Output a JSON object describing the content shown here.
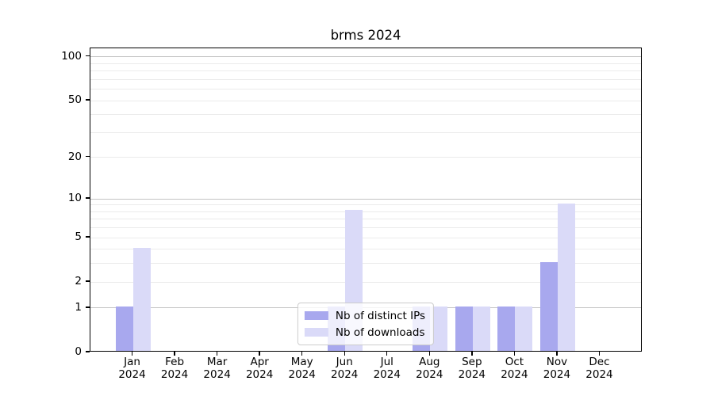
{
  "title": "brms 2024",
  "chart_data": {
    "type": "bar",
    "title": "brms 2024",
    "categories": [
      "Jan",
      "Feb",
      "Mar",
      "Apr",
      "May",
      "Jun",
      "Jul",
      "Aug",
      "Sep",
      "Oct",
      "Nov",
      "Dec"
    ],
    "category_year": "2024",
    "series": [
      {
        "name": "Nb of distinct IPs",
        "color": "#a8a8ee",
        "values": [
          1,
          0,
          0,
          0,
          0,
          1,
          0,
          1,
          1,
          1,
          3,
          0
        ]
      },
      {
        "name": "Nb of downloads",
        "color": "#dadaf8",
        "values": [
          4,
          0,
          0,
          0,
          0,
          8,
          0,
          1,
          1,
          1,
          9,
          0
        ]
      }
    ],
    "yscale": "log1p",
    "ylim": [
      0,
      114.4
    ],
    "ytick_labels": [
      100,
      50,
      20,
      10,
      5,
      2,
      1,
      0
    ],
    "major_gridlines": [
      1,
      10,
      100
    ],
    "minor_gridlines": [
      2,
      3,
      4,
      5,
      6,
      7,
      8,
      9,
      20,
      30,
      40,
      50,
      60,
      70,
      80,
      90
    ],
    "grid": true,
    "legend_position": "lower center",
    "colors": {
      "major_grid": "#c3c3c3",
      "minor_grid": "#ebebeb",
      "spine": "#000000"
    }
  }
}
